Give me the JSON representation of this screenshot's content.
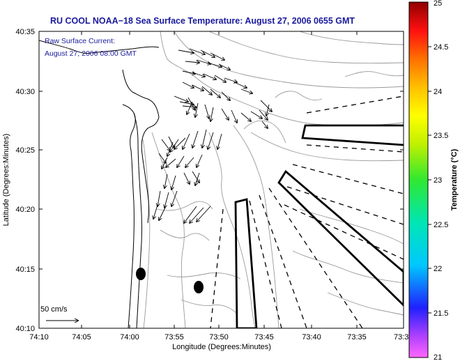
{
  "title": "RU COOL  NOAA−18  Sea Surface Temperature:  August 27, 2006 0655 GMT",
  "inset": {
    "line1": "Raw Surface Current:",
    "line2": "August 27, 2006 08:00 GMT"
  },
  "axes": {
    "xlabel": "Longitude (Degrees:Minutes)",
    "ylabel": "Latitude (Degrees:Minutes)",
    "xticks": [
      "74:10",
      "74:05",
      "74:00",
      "73:55",
      "73:50",
      "73:45",
      "73:40",
      "73:35",
      "73:3"
    ],
    "yticks": [
      "40:35",
      "40:30",
      "40:25",
      "40:20",
      "40:15",
      "40:10"
    ]
  },
  "colorbar": {
    "label": "Temperature (°C)",
    "ticks": [
      "25",
      "24.5",
      "24",
      "23.5",
      "23",
      "22.5",
      "22",
      "21.5",
      "21"
    ],
    "min": 21,
    "max": 25
  },
  "scale": {
    "label": "50 cm/s"
  },
  "colors": {
    "title": "#1a1a9c",
    "coast": "#000000",
    "contour": "#999999"
  }
}
